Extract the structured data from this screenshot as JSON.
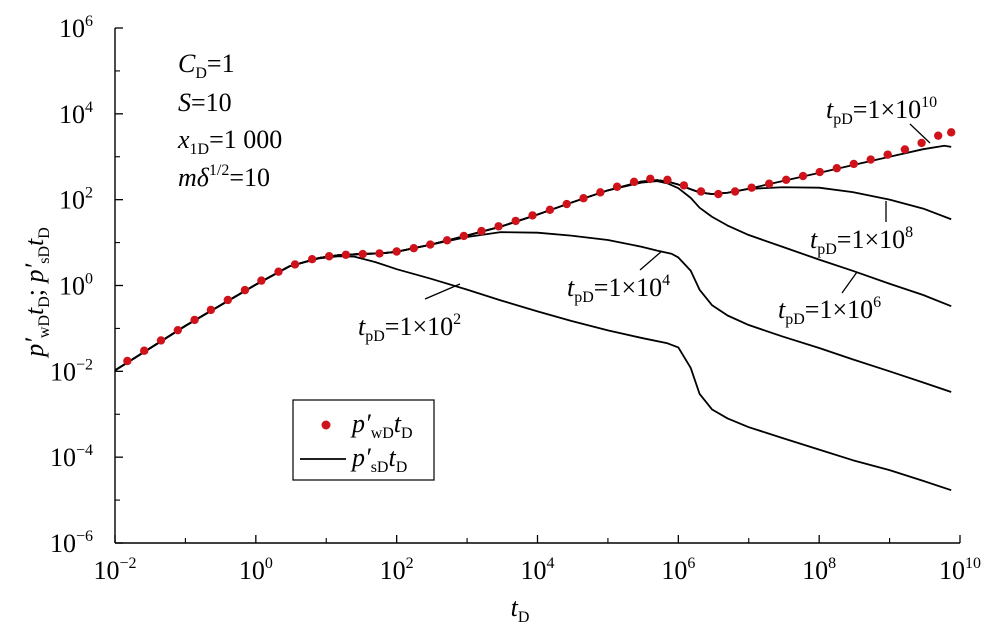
{
  "chart_data": {
    "type": "line",
    "x_scale": "log",
    "y_scale": "log",
    "xlim": [
      0.01,
      10000000000
    ],
    "ylim": [
      1e-06,
      1000000
    ],
    "grid": false,
    "legend_position": "lower-left",
    "xlabel": {
      "main": "t",
      "sub": "D"
    },
    "ylabel": {
      "p1": "p′",
      "s1": "wD",
      "t1": "t",
      "s2": "D",
      "sep": "; ",
      "p2": "p′",
      "s3": "sD",
      "t2": "t",
      "s4": "D"
    },
    "x_ticks": [
      {
        "value": 0.01,
        "base": "10",
        "exp": "−2"
      },
      {
        "value": 1,
        "base": "10",
        "exp": "0"
      },
      {
        "value": 100,
        "base": "10",
        "exp": "2"
      },
      {
        "value": 10000,
        "base": "10",
        "exp": "4"
      },
      {
        "value": 1000000,
        "base": "10",
        "exp": "6"
      },
      {
        "value": 100000000,
        "base": "10",
        "exp": "8"
      },
      {
        "value": 10000000000,
        "base": "10",
        "exp": "10"
      }
    ],
    "y_ticks": [
      {
        "value": 1e-06,
        "base": "10",
        "exp": "−6"
      },
      {
        "value": 0.0001,
        "base": "10",
        "exp": "−4"
      },
      {
        "value": 0.01,
        "base": "10",
        "exp": "−2"
      },
      {
        "value": 1,
        "base": "10",
        "exp": "0"
      },
      {
        "value": 100,
        "base": "10",
        "exp": "2"
      },
      {
        "value": 10000,
        "base": "10",
        "exp": "4"
      },
      {
        "value": 1000000,
        "base": "10",
        "exp": "6"
      }
    ],
    "params": [
      {
        "var": "C",
        "sub": "D",
        "rest": "=1"
      },
      {
        "var": "S",
        "sub": "",
        "rest": "=10"
      },
      {
        "var": "x",
        "sub": "1D",
        "rest": "=1 000"
      },
      {
        "var": "mδ",
        "sup": "1/2",
        "rest": "=10"
      }
    ],
    "legend": [
      {
        "marker": "dot",
        "p": "p′",
        "sub1": "wD",
        "t": "t",
        "sub2": "D"
      },
      {
        "marker": "line",
        "p": "p′",
        "sub1": "sD",
        "t": "t",
        "sub2": "D"
      }
    ],
    "series": [
      {
        "style": "dots",
        "color": "#d0121b",
        "points": [
          [
            0.015,
            0.0174
          ],
          [
            0.026,
            0.0302
          ],
          [
            0.045,
            0.0525
          ],
          [
            0.078,
            0.091
          ],
          [
            0.135,
            0.158
          ],
          [
            0.23,
            0.27
          ],
          [
            0.4,
            0.46
          ],
          [
            0.7,
            0.78
          ],
          [
            1.2,
            1.3
          ],
          [
            2.1,
            2.1
          ],
          [
            3.6,
            3.1
          ],
          [
            6.3,
            4.1
          ],
          [
            11,
            4.8
          ],
          [
            19,
            5.2
          ],
          [
            33,
            5.4
          ],
          [
            57,
            5.6
          ],
          [
            100,
            6.2
          ],
          [
            175,
            7.4
          ],
          [
            300,
            9.0
          ],
          [
            520,
            11.3
          ],
          [
            900,
            14.3
          ],
          [
            1600,
            18.5
          ],
          [
            2800,
            24
          ],
          [
            4900,
            32
          ],
          [
            8500,
            43
          ],
          [
            15000,
            58
          ],
          [
            26000,
            79
          ],
          [
            45000,
            108
          ],
          [
            78000,
            148
          ],
          [
            135000,
            200
          ],
          [
            235000,
            260
          ],
          [
            400000,
            305
          ],
          [
            700000,
            290
          ],
          [
            1200000,
            215
          ],
          [
            2100000,
            155
          ],
          [
            3700000,
            135
          ],
          [
            6400000,
            155
          ],
          [
            11000000,
            190
          ],
          [
            19500000,
            235
          ],
          [
            34000000,
            290
          ],
          [
            59000000,
            355
          ],
          [
            102000000,
            440
          ],
          [
            178000000,
            540
          ],
          [
            310000000,
            680
          ],
          [
            540000000,
            860
          ],
          [
            940000000,
            1120
          ],
          [
            1650000000,
            1480
          ],
          [
            2850000000,
            2100
          ],
          [
            4900000000,
            3100
          ],
          [
            7500000000,
            3700
          ]
        ]
      },
      {
        "style": "line",
        "label": {
          "t": "t",
          "sub": "pD",
          "eq": "=1×10",
          "exp": "10"
        },
        "points": [
          [
            0.01,
            0.0105
          ],
          [
            0.1,
            0.115
          ],
          [
            1,
            1.05
          ],
          [
            3,
            2.8
          ],
          [
            8,
            4.4
          ],
          [
            15,
            5.1
          ],
          [
            30,
            5.4
          ],
          [
            60,
            5.6
          ],
          [
            100,
            6.1
          ],
          [
            300,
            8.9
          ],
          [
            1000,
            14.6
          ],
          [
            3000,
            23.5
          ],
          [
            10000,
            45
          ],
          [
            30000,
            85
          ],
          [
            100000,
            165
          ],
          [
            300000,
            265
          ],
          [
            500000,
            285
          ],
          [
            700000,
            265
          ],
          [
            1000000,
            225
          ],
          [
            1500000,
            175
          ],
          [
            2000000,
            148
          ],
          [
            3000000,
            135
          ],
          [
            5000000,
            145
          ],
          [
            10000000,
            180
          ],
          [
            30000000,
            270
          ],
          [
            100000000,
            420
          ],
          [
            300000000,
            640
          ],
          [
            1000000000,
            1000
          ],
          [
            3000000000,
            1500
          ],
          [
            6000000000,
            1800
          ],
          [
            7500000000,
            1700
          ]
        ]
      },
      {
        "style": "line",
        "label": {
          "t": "t",
          "sub": "pD",
          "eq": "=1×10",
          "exp": "8"
        },
        "points": [
          [
            0.01,
            0.0105
          ],
          [
            0.1,
            0.115
          ],
          [
            1,
            1.05
          ],
          [
            3,
            2.8
          ],
          [
            8,
            4.4
          ],
          [
            15,
            5.1
          ],
          [
            30,
            5.4
          ],
          [
            60,
            5.6
          ],
          [
            100,
            6.1
          ],
          [
            300,
            8.9
          ],
          [
            1000,
            14.6
          ],
          [
            3000,
            23.5
          ],
          [
            10000,
            45
          ],
          [
            30000,
            85
          ],
          [
            100000,
            165
          ],
          [
            300000,
            265
          ],
          [
            500000,
            285
          ],
          [
            700000,
            265
          ],
          [
            1000000,
            225
          ],
          [
            1500000,
            175
          ],
          [
            2000000,
            148
          ],
          [
            3000000,
            135
          ],
          [
            5000000,
            145
          ],
          [
            10000000,
            178
          ],
          [
            30000000,
            195
          ],
          [
            100000000,
            190
          ],
          [
            300000000,
            150
          ],
          [
            1000000000,
            100
          ],
          [
            3000000000,
            62
          ],
          [
            7500000000,
            35
          ]
        ]
      },
      {
        "style": "line",
        "label": {
          "t": "t",
          "sub": "pD",
          "eq": "=1×10",
          "exp": "6"
        },
        "points": [
          [
            0.01,
            0.0105
          ],
          [
            0.1,
            0.115
          ],
          [
            1,
            1.05
          ],
          [
            3,
            2.8
          ],
          [
            8,
            4.4
          ],
          [
            15,
            5.1
          ],
          [
            30,
            5.4
          ],
          [
            60,
            5.6
          ],
          [
            100,
            6.1
          ],
          [
            300,
            8.9
          ],
          [
            1000,
            14.6
          ],
          [
            3000,
            23.5
          ],
          [
            10000,
            45
          ],
          [
            30000,
            85
          ],
          [
            100000,
            165
          ],
          [
            300000,
            250
          ],
          [
            500000,
            270
          ],
          [
            700000,
            240
          ],
          [
            1000000,
            185
          ],
          [
            1500000,
            110
          ],
          [
            2000000,
            65
          ],
          [
            3000000,
            40
          ],
          [
            5000000,
            25
          ],
          [
            10000000,
            15
          ],
          [
            30000000,
            8
          ],
          [
            100000000,
            4
          ],
          [
            300000000,
            2.2
          ],
          [
            1000000000,
            1.1
          ],
          [
            3000000000,
            0.6
          ],
          [
            7500000000,
            0.33
          ]
        ]
      },
      {
        "style": "line",
        "label": {
          "t": "t",
          "sub": "pD",
          "eq": "=1×10",
          "exp": "4"
        },
        "points": [
          [
            0.01,
            0.0105
          ],
          [
            0.1,
            0.115
          ],
          [
            1,
            1.05
          ],
          [
            3,
            2.8
          ],
          [
            8,
            4.4
          ],
          [
            15,
            5.1
          ],
          [
            30,
            5.4
          ],
          [
            60,
            5.6
          ],
          [
            100,
            6.1
          ],
          [
            300,
            8.9
          ],
          [
            1000,
            13.5
          ],
          [
            3000,
            17.5
          ],
          [
            10000,
            17
          ],
          [
            30000,
            14.5
          ],
          [
            100000,
            11.5
          ],
          [
            300000,
            8
          ],
          [
            500000,
            6.5
          ],
          [
            800000,
            5.5
          ],
          [
            1000000,
            4.5
          ],
          [
            1500000,
            2.2
          ],
          [
            2000000,
            0.8
          ],
          [
            3000000,
            0.35
          ],
          [
            5000000,
            0.2
          ],
          [
            10000000,
            0.12
          ],
          [
            30000000,
            0.065
          ],
          [
            100000000,
            0.035
          ],
          [
            300000000,
            0.019
          ],
          [
            1000000000,
            0.01
          ],
          [
            3000000000,
            0.0055
          ],
          [
            7500000000,
            0.0033
          ]
        ]
      },
      {
        "style": "line",
        "label": {
          "t": "t",
          "sub": "pD",
          "eq": "=1×10",
          "exp": "2"
        },
        "points": [
          [
            0.01,
            0.0105
          ],
          [
            0.1,
            0.115
          ],
          [
            1,
            1.05
          ],
          [
            3,
            2.8
          ],
          [
            8,
            4.3
          ],
          [
            15,
            4.8
          ],
          [
            25,
            4.7
          ],
          [
            50,
            3.5
          ],
          [
            100,
            2.4
          ],
          [
            300,
            1.45
          ],
          [
            1000,
            0.8
          ],
          [
            3000,
            0.45
          ],
          [
            10000,
            0.25
          ],
          [
            30000,
            0.15
          ],
          [
            100000,
            0.09
          ],
          [
            300000,
            0.06
          ],
          [
            700000,
            0.045
          ],
          [
            1000000,
            0.036
          ],
          [
            1500000,
            0.012
          ],
          [
            2000000,
            0.003
          ],
          [
            3000000,
            0.0013
          ],
          [
            5000000,
            0.0008
          ],
          [
            10000000,
            0.0005
          ],
          [
            30000000,
            0.00028
          ],
          [
            100000000,
            0.00015
          ],
          [
            300000000,
            8.5e-05
          ],
          [
            1000000000,
            5e-05
          ],
          [
            3000000000,
            2.8e-05
          ],
          [
            7500000000,
            1.7e-05
          ]
        ]
      }
    ]
  }
}
